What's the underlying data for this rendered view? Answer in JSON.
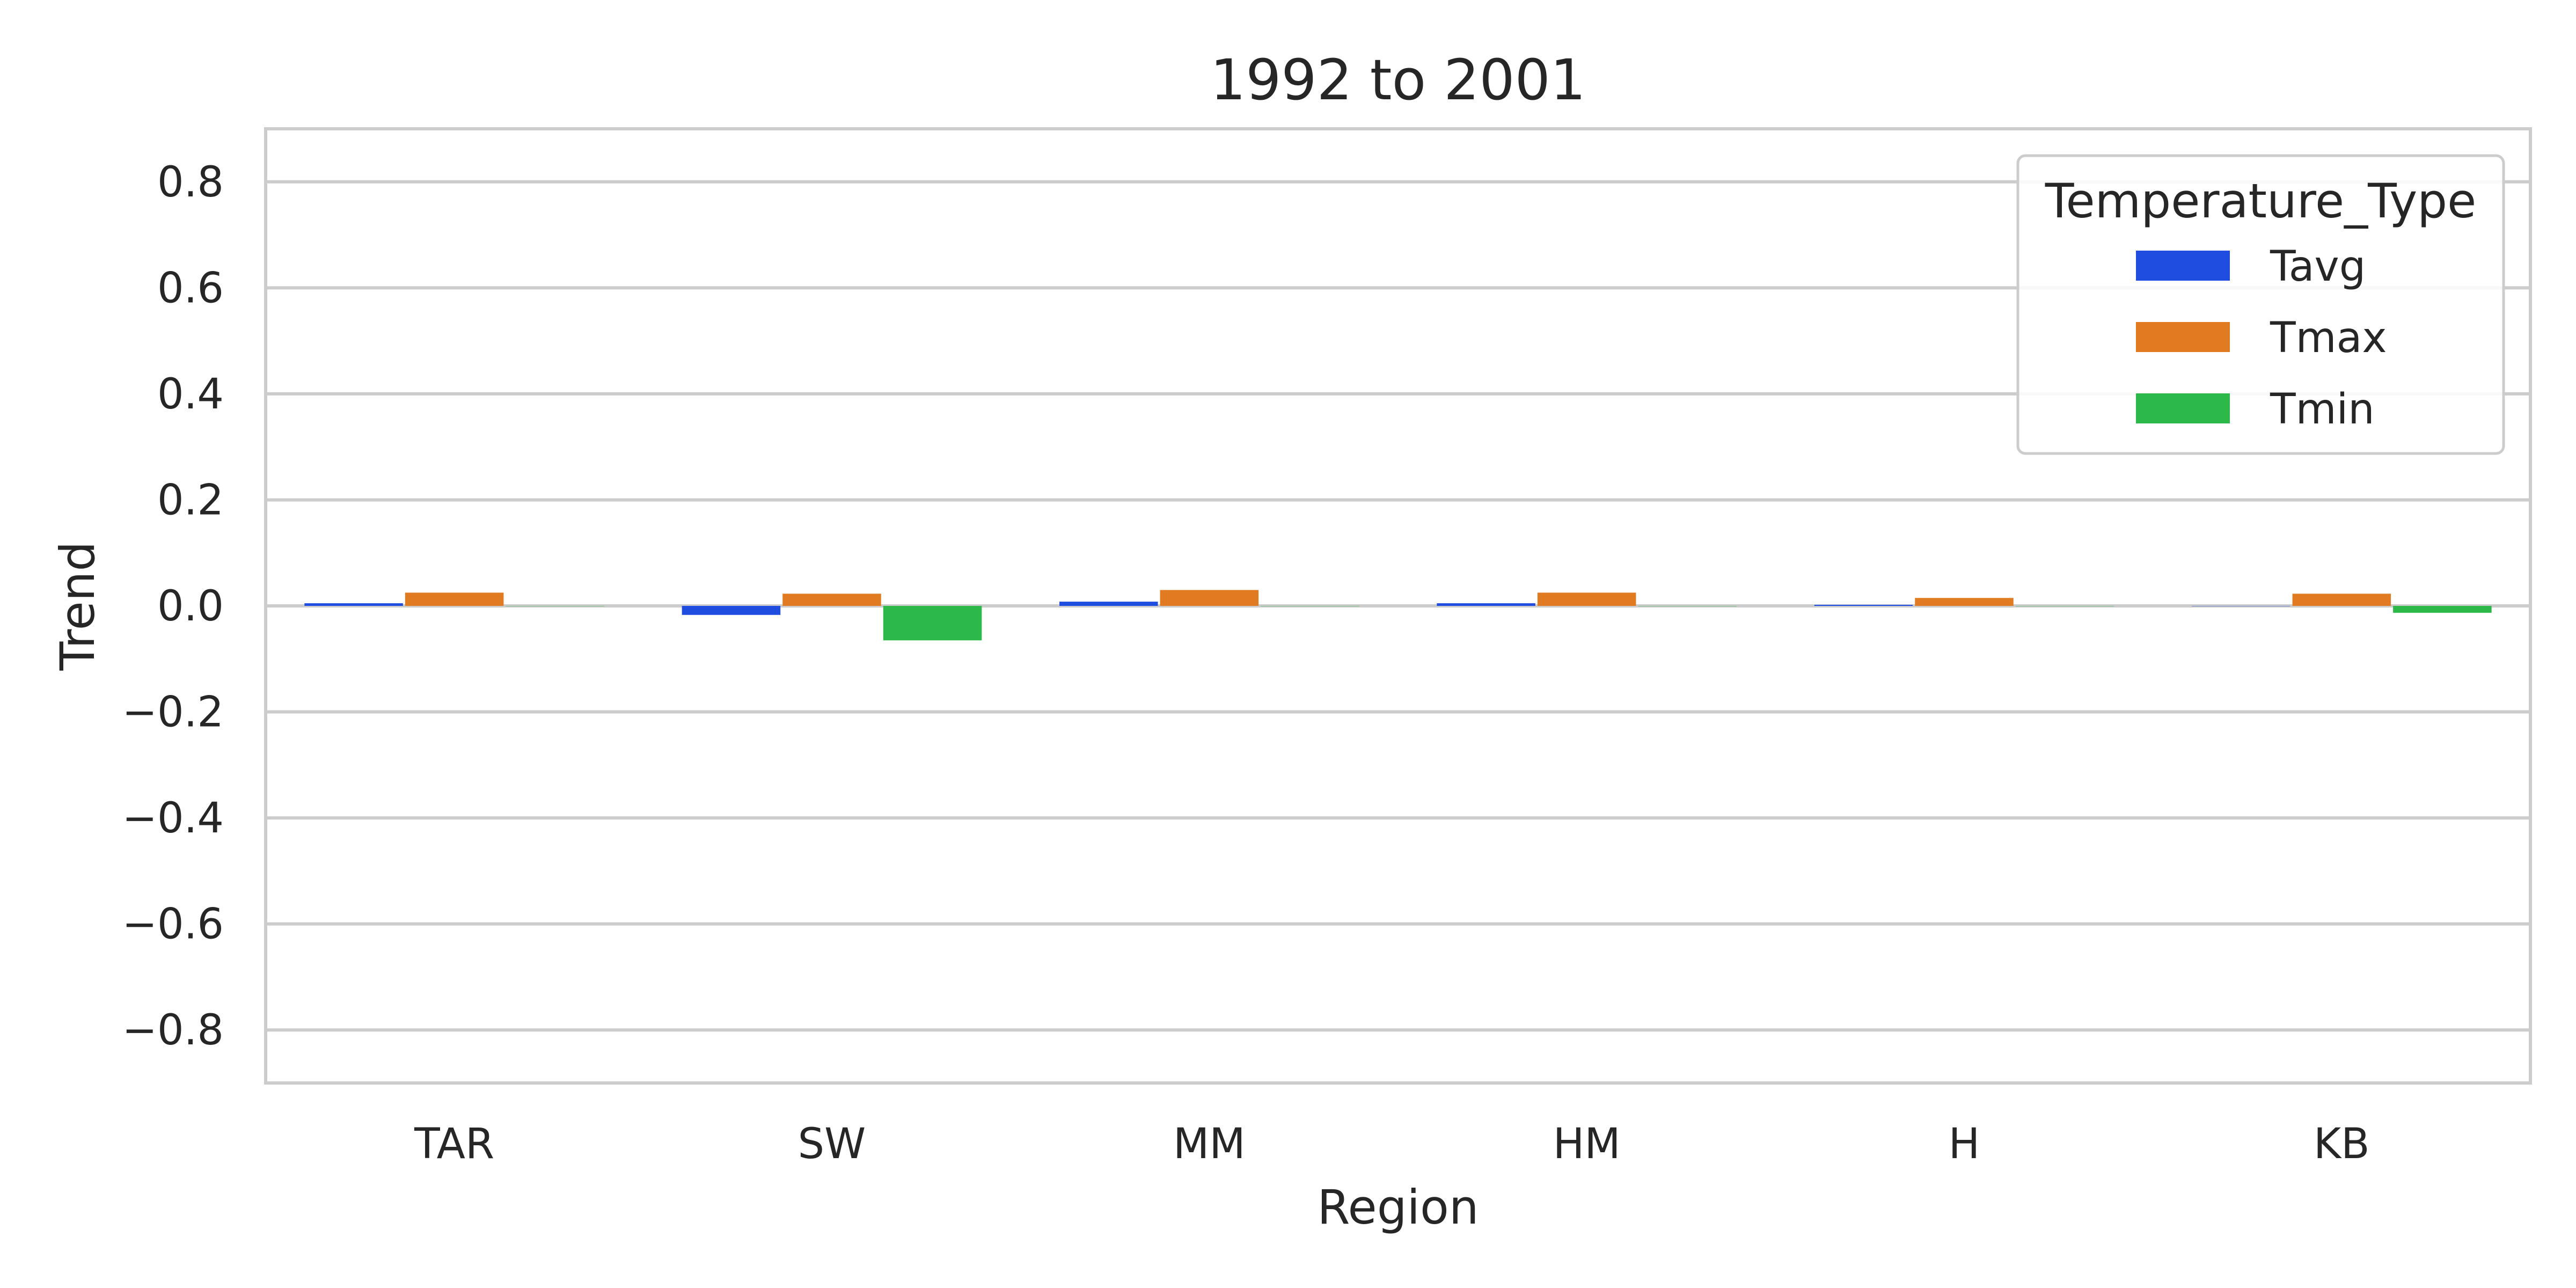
{
  "chart_data": {
    "type": "bar",
    "title": "1992 to 2001",
    "xlabel": "Region",
    "ylabel": "Trend",
    "categories": [
      "TAR",
      "SW",
      "MM",
      "HM",
      "H",
      "KB"
    ],
    "ylim": [
      -0.9,
      0.9
    ],
    "yticks": [
      -0.8,
      -0.6,
      -0.4,
      -0.2,
      0.0,
      0.2,
      0.4,
      0.6,
      0.8
    ],
    "ytick_labels": [
      "−0.8",
      "−0.6",
      "−0.4",
      "−0.2",
      "0.0",
      "0.2",
      "0.4",
      "0.6",
      "0.8"
    ],
    "grid": true,
    "legend": {
      "title": "Temperature_Type",
      "position": "top-right"
    },
    "series": [
      {
        "name": "Tavg",
        "color": "#1f4de0",
        "values": [
          0.005,
          -0.017,
          0.008,
          0.005,
          0.002,
          0.0
        ]
      },
      {
        "name": "Tmax",
        "color": "#e07b22",
        "values": [
          0.025,
          0.023,
          0.03,
          0.025,
          0.015,
          0.023
        ]
      },
      {
        "name": "Tmin",
        "color": "#2db84a",
        "values": [
          0.0,
          -0.065,
          0.0,
          0.0,
          0.0,
          -0.013
        ]
      }
    ]
  }
}
